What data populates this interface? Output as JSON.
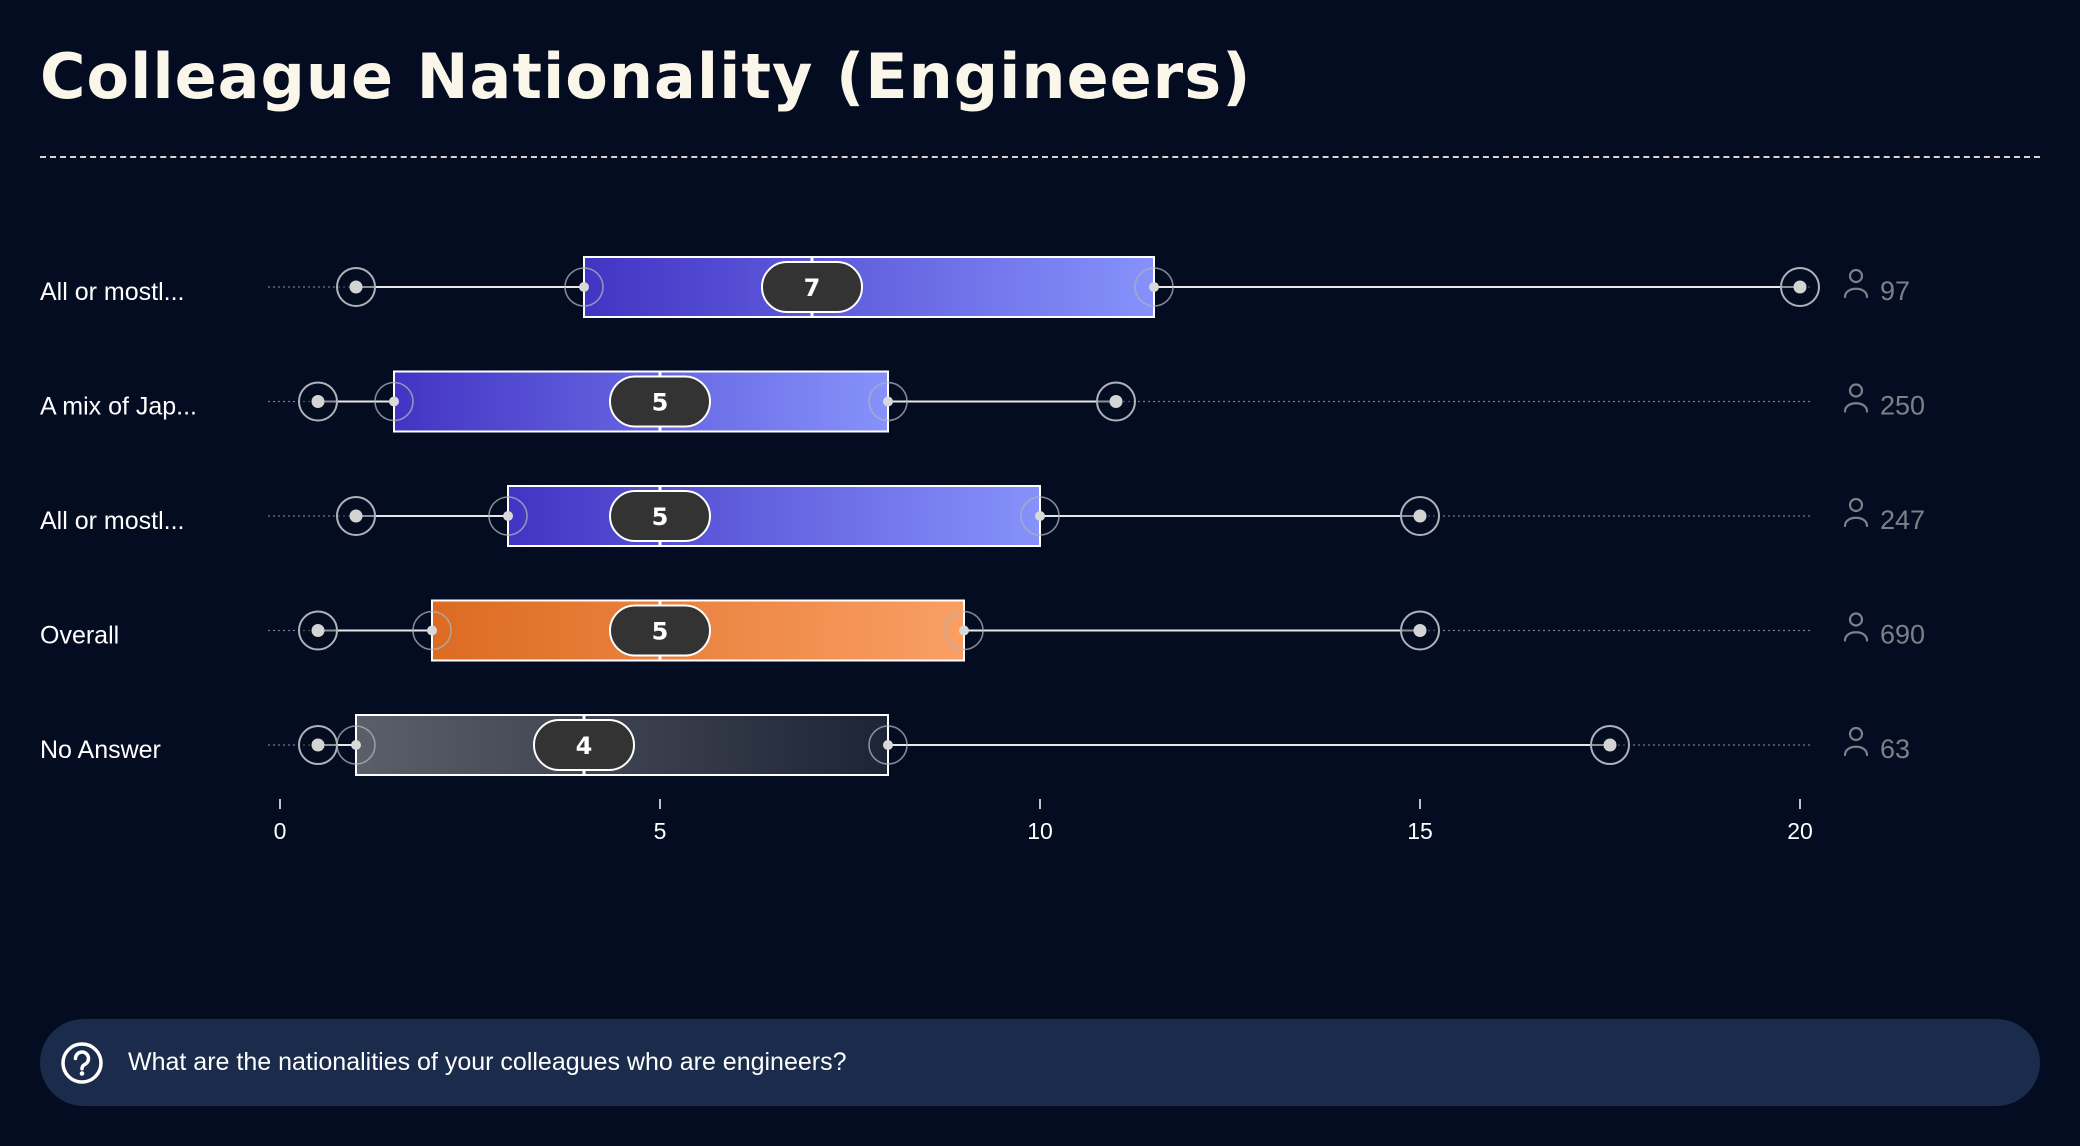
{
  "title": "Colleague Nationality (Engineers)",
  "question": {
    "icon": "question-circle-icon",
    "text": "What are the nationalities of your colleagues who are engineers?"
  },
  "colors": {
    "background": "#040c21",
    "title": "#fbf6ea",
    "blue_box_start": "#4234c4",
    "blue_box_end": "#8692fb",
    "orange_box_start": "#dc6b22",
    "orange_box_end": "#fa9f64",
    "grey_box_start": "#5b5f69",
    "grey_box_end": "#1d2435",
    "median_pill": "#333333",
    "count_text": "#7c8088",
    "question_bar": "#1a2b4b"
  },
  "chart_data": {
    "type": "boxplot",
    "orientation": "horizontal",
    "xlim": [
      0,
      20
    ],
    "x_ticks": [
      0,
      5,
      10,
      15,
      20
    ],
    "count_icon": "person-icon",
    "categories": [
      "All or mostl...",
      "A mix of Jap...",
      "All or mostl...",
      "Overall",
      "No Answer"
    ],
    "series": [
      {
        "label": "All or mostl...",
        "min": 1,
        "q1": 4,
        "median": 7,
        "q3": 11.5,
        "max": 20,
        "count": "97",
        "style": "blue"
      },
      {
        "label": "A mix of Jap...",
        "min": 0.5,
        "q1": 1.5,
        "median": 5,
        "q3": 8,
        "max": 11,
        "count": "250",
        "style": "blue"
      },
      {
        "label": "All or mostl...",
        "min": 1,
        "q1": 3,
        "median": 5,
        "q3": 10,
        "max": 15,
        "count": "247",
        "style": "blue"
      },
      {
        "label": "Overall",
        "min": 0.5,
        "q1": 2,
        "median": 5,
        "q3": 9,
        "max": 15,
        "count": "690",
        "style": "orange"
      },
      {
        "label": "No Answer",
        "min": 0.5,
        "q1": 1,
        "median": 4,
        "q3": 8,
        "max": 17.5,
        "count": "63",
        "style": "grey"
      }
    ]
  }
}
